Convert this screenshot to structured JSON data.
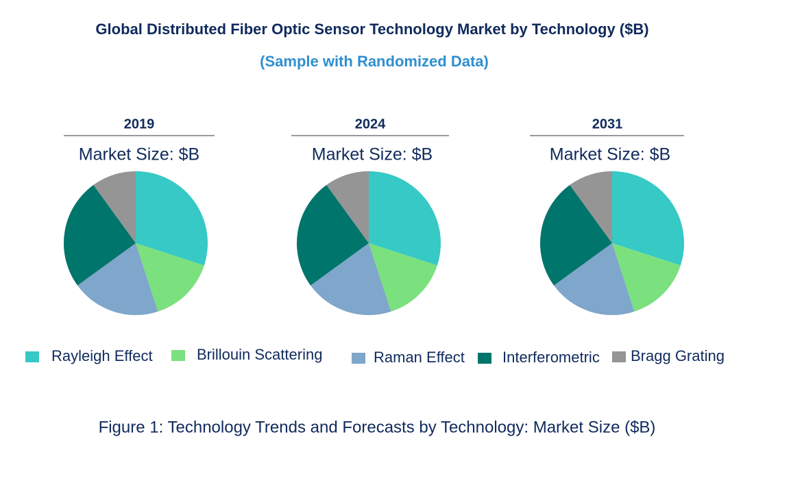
{
  "title": "Global Distributed Fiber Optic Sensor Technology Market by Technology ($B)",
  "subtitle": "(Sample with Randomized Data)",
  "caption": "Figure 1: Technology Trends and Forecasts by Technology: Market Size ($B)",
  "chart_data": [
    {
      "type": "pie",
      "title": "2019",
      "subtitle": "Market Size: $B",
      "categories": [
        "Rayleigh Effect",
        "Brillouin Scattering",
        "Raman Effect",
        "Interferometric",
        "Bragg Grating"
      ],
      "values": [
        30,
        15,
        20,
        25,
        10
      ],
      "colors": [
        "#36c9c6",
        "#7be07e",
        "#7fa6cb",
        "#00756b",
        "#959595"
      ]
    },
    {
      "type": "pie",
      "title": "2024",
      "subtitle": "Market Size: $B",
      "categories": [
        "Rayleigh Effect",
        "Brillouin Scattering",
        "Raman Effect",
        "Interferometric",
        "Bragg Grating"
      ],
      "values": [
        30,
        15,
        20,
        25,
        10
      ],
      "colors": [
        "#36c9c6",
        "#7be07e",
        "#7fa6cb",
        "#00756b",
        "#959595"
      ]
    },
    {
      "type": "pie",
      "title": "2031",
      "subtitle": "Market Size: $B",
      "categories": [
        "Rayleigh Effect",
        "Brillouin Scattering",
        "Raman Effect",
        "Interferometric",
        "Bragg Grating"
      ],
      "values": [
        30,
        15,
        20,
        25,
        10
      ],
      "colors": [
        "#36c9c6",
        "#7be07e",
        "#7fa6cb",
        "#00756b",
        "#959595"
      ]
    }
  ]
}
